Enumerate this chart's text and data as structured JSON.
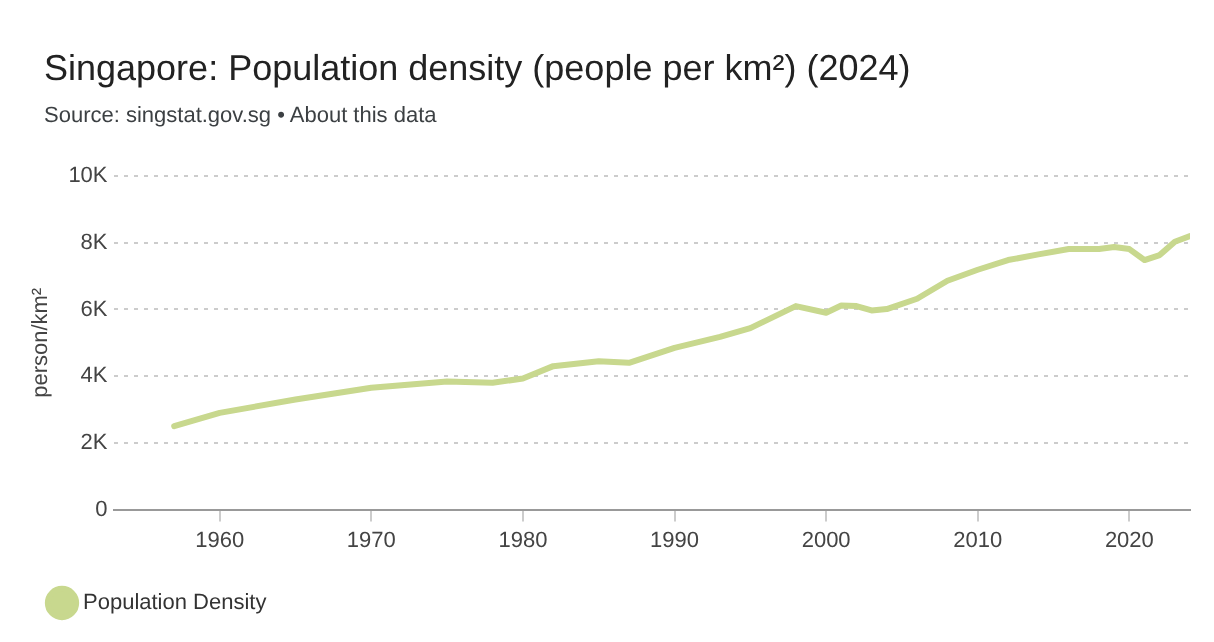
{
  "chart_data": {
    "type": "line",
    "title": "Singapore: Population density (people per km²) (2024)",
    "annotations": [
      "Source: singstat.gov.sg • About this data"
    ],
    "ylabel": "person/km²",
    "series": [
      {
        "name": "Population Density",
        "color": "#c8d88e",
        "x": [
          1957,
          1960,
          1965,
          1970,
          1975,
          1978,
          1980,
          1982,
          1985,
          1987,
          1990,
          1993,
          1995,
          1998,
          2000,
          2001,
          2002,
          2003,
          2004,
          2006,
          2008,
          2010,
          2012,
          2014,
          2016,
          2018,
          2019,
          2020,
          2021,
          2022,
          2023,
          2024
        ],
        "values": [
          2500,
          2900,
          3300,
          3650,
          3840,
          3800,
          3930,
          4300,
          4450,
          4400,
          4850,
          5180,
          5440,
          6100,
          5900,
          6120,
          6100,
          5970,
          6010,
          6320,
          6860,
          7190,
          7480,
          7650,
          7810,
          7810,
          7870,
          7810,
          7480,
          7630,
          8030,
          8200
        ]
      }
    ],
    "xlim": [
      1953,
      2024
    ],
    "xticks": [
      1960,
      1970,
      1980,
      1990,
      2000,
      2010,
      2020
    ],
    "ylim": [
      0,
      10000
    ],
    "yticks": [
      0,
      {
        "value": 2000,
        "label": "2K"
      },
      {
        "value": 4000,
        "label": "4K"
      },
      {
        "value": 6000,
        "label": "6K"
      },
      {
        "value": 8000,
        "label": "8K"
      },
      {
        "value": 10000,
        "label": "10K"
      }
    ],
    "grid": "y",
    "legend": "bottom",
    "marker": "none",
    "line_style": "solid"
  }
}
